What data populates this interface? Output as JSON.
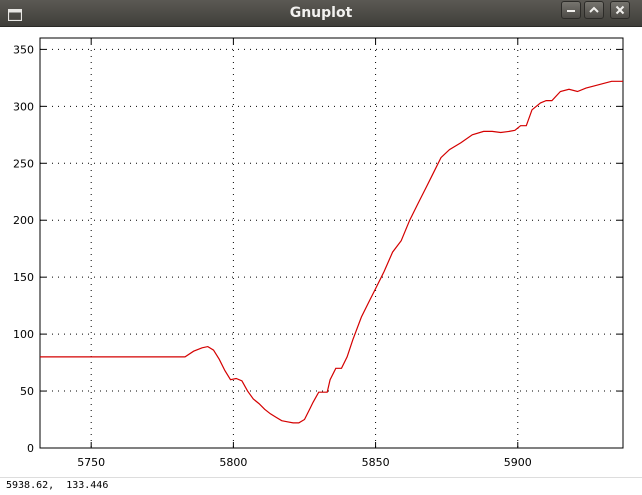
{
  "window": {
    "title": "Gnuplot",
    "buttons": [
      "minimize",
      "maximize",
      "close"
    ],
    "icon": "window-icon"
  },
  "status": {
    "coords": "5938.62,  133.446"
  },
  "chart_data": {
    "type": "line",
    "title": "",
    "xlabel": "",
    "ylabel": "",
    "xlim": [
      5732,
      5937
    ],
    "ylim": [
      0,
      360
    ],
    "grid": true,
    "x_ticks": [
      "5750",
      "5800",
      "5850",
      "5900"
    ],
    "y_ticks": [
      "0",
      "50",
      "100",
      "150",
      "200",
      "250",
      "300",
      "350"
    ],
    "series": [
      {
        "color": "#d40000",
        "x": [
          5732,
          5783,
          5786,
          5789,
          5791,
          5793,
          5795,
          5797,
          5799,
          5801,
          5803,
          5805,
          5807,
          5809,
          5811,
          5813,
          5815,
          5817,
          5819,
          5821,
          5823,
          5825,
          5827,
          5828,
          5830,
          5831,
          5833,
          5834,
          5836,
          5838,
          5840,
          5842,
          5845,
          5848,
          5850,
          5853,
          5856,
          5859,
          5862,
          5865,
          5868,
          5870,
          5873,
          5876,
          5880,
          5884,
          5888,
          5891,
          5894,
          5897,
          5899,
          5901,
          5903,
          5905,
          5908,
          5910,
          5912,
          5915,
          5918,
          5921,
          5924,
          5927,
          5930,
          5933,
          5937
        ],
        "y": [
          80,
          80,
          85,
          88,
          89,
          86,
          78,
          68,
          60,
          61,
          59,
          50,
          43,
          39,
          34,
          30,
          27,
          24,
          23,
          22,
          22,
          25,
          35,
          40,
          49,
          49,
          49,
          60,
          70,
          70,
          80,
          95,
          115,
          130,
          140,
          155,
          172,
          182,
          200,
          215,
          230,
          240,
          255,
          262,
          268,
          275,
          278,
          278,
          277,
          278,
          279,
          283,
          283,
          297,
          303,
          305,
          305,
          313,
          315,
          313,
          316,
          318,
          320,
          322,
          322
        ]
      }
    ]
  }
}
